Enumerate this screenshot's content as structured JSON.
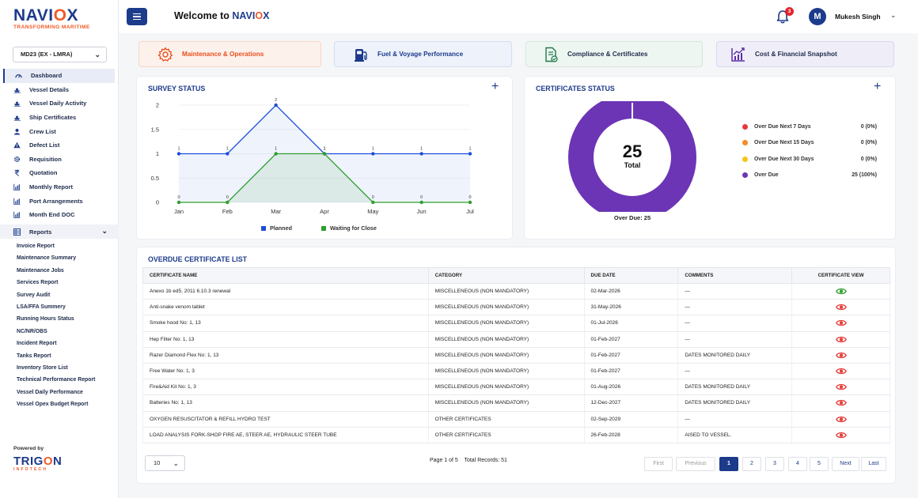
{
  "brand": {
    "name_a": "NAVI",
    "name_x": "O",
    "name_b": "X",
    "tagline": "TRANSFORMING MARITIME"
  },
  "vessel_select": {
    "value": "MD23 (EX - LMRA)"
  },
  "nav": {
    "items": [
      {
        "label": "Dashboard",
        "icon": "dashboard-icon"
      },
      {
        "label": "Vessel Details",
        "icon": "ship-icon"
      },
      {
        "label": "Vessel Daily Activity",
        "icon": "ship-icon"
      },
      {
        "label": "Ship Certificates",
        "icon": "ship-icon"
      },
      {
        "label": "Crew List",
        "icon": "crew-icon"
      },
      {
        "label": "Defect List",
        "icon": "warning-icon"
      },
      {
        "label": "Requisition",
        "icon": "gear-icon"
      },
      {
        "label": "Quotation",
        "icon": "rupee-icon"
      },
      {
        "label": "Monthly Report",
        "icon": "bar-chart-icon"
      },
      {
        "label": "Port Arrangements",
        "icon": "bar-chart-icon"
      },
      {
        "label": "Month End DOC",
        "icon": "bar-chart-icon"
      }
    ],
    "reports_label": "Reports",
    "reports": [
      "Invoice Report",
      "Maintenance Summary",
      "Maintenance Jobs",
      "Services Report",
      "Survey Audit",
      "LSA/FFA Summery",
      "Running Hours Status",
      "NC/NR/OBS",
      "Incident Report",
      "Tanks Report",
      "Inventory Store List",
      "Technical Performance Report",
      "Vessel Daily Performance",
      "Vessel Opex Budget Report"
    ]
  },
  "powered": {
    "label": "Powered by",
    "company_a": "TRIG",
    "company_o": "O",
    "company_b": "N",
    "company_sub": "INFOTECH"
  },
  "header": {
    "welcome": "Welcome to",
    "brand_a": "NAVI",
    "brand_x": "O",
    "brand_b": "X",
    "notifications": "3",
    "avatar_initial": "M",
    "user": "Mukesh Singh"
  },
  "quick_tabs": [
    {
      "label": "Maintenance & Operations",
      "icon": "gear-icon"
    },
    {
      "label": "Fuel & Voyage Performance",
      "icon": "fuel-icon"
    },
    {
      "label": "Compliance & Certificates",
      "icon": "certificate-icon"
    },
    {
      "label": "Cost & Financial Snapshot",
      "icon": "trend-chart-icon"
    }
  ],
  "survey": {
    "title": "SURVEY STATUS",
    "chart_data": {
      "type": "line",
      "categories": [
        "Jan",
        "Feb",
        "Mar",
        "Apr",
        "May",
        "Jun",
        "Jul"
      ],
      "ylim": [
        0,
        2
      ],
      "yticks": [
        "0",
        "0.5",
        "1",
        "1.5",
        "2"
      ],
      "series": [
        {
          "name": "Planned",
          "color": "#1d4ed8",
          "values": [
            1,
            1,
            2,
            1,
            1,
            1,
            1
          ]
        },
        {
          "name": "Waiting for Close",
          "color": "#2e9e2e",
          "values": [
            0,
            0,
            1,
            1,
            0,
            0,
            0
          ]
        }
      ]
    }
  },
  "certificates": {
    "title": "CERTIFICATES STATUS",
    "total": "25",
    "total_label": "Total",
    "overdue_summary": "Over Due: 25",
    "legend": [
      {
        "label": "Over Due Next 7 Days",
        "value": "0 (0%)",
        "color": "#e53935"
      },
      {
        "label": "Over Due Next 15 Days",
        "value": "0 (0%)",
        "color": "#f28c28"
      },
      {
        "label": "Over Due Next 30 Days",
        "value": "0 (0%)",
        "color": "#f5c518"
      },
      {
        "label": "Over Due",
        "value": "25 (100%)",
        "color": "#6c35b5"
      }
    ]
  },
  "overdue": {
    "title": "OVERDUE CERTIFICATE LIST",
    "columns": [
      "CERTIFICATE NAME",
      "CATEGORY",
      "DUE DATE",
      "COMMENTS",
      "CERTIFICATE VIEW"
    ],
    "rows": [
      {
        "name": "Anexo 1b ed5, 2011 6.10.3 renewal",
        "category": "MISCELLENEOUS (NON MANDATORY)",
        "due": "02-Mar-2026",
        "comments": "—",
        "eye": "#2e9e2e"
      },
      {
        "name": "Anti-snake venom tablet",
        "category": "MISCELLENEOUS (NON MANDATORY)",
        "due": "31-May-2026",
        "comments": "—",
        "eye": "#e53935"
      },
      {
        "name": "Smoke hood No: 1, 13",
        "category": "MISCELLENEOUS (NON MANDATORY)",
        "due": "01-Jul-2026",
        "comments": "—",
        "eye": "#e53935"
      },
      {
        "name": "Hep Filter No: 1, 13",
        "category": "MISCELLENEOUS (NON MANDATORY)",
        "due": "01-Feb-2027",
        "comments": "—",
        "eye": "#e53935"
      },
      {
        "name": "Razer Diamond Flex No: 1, 13",
        "category": "MISCELLENEOUS (NON MANDATORY)",
        "due": "01-Feb-2027",
        "comments": "DATES MONITORED DAILY",
        "eye": "#e53935"
      },
      {
        "name": "Free Water No: 1, 3",
        "category": "MISCELLENEOUS (NON MANDATORY)",
        "due": "01-Feb-2027",
        "comments": "—",
        "eye": "#e53935"
      },
      {
        "name": "Fire&Aid Kit No: 1, 3",
        "category": "MISCELLENEOUS (NON MANDATORY)",
        "due": "01-Aug-2026",
        "comments": "DATES MONITORED DAILY",
        "eye": "#e53935"
      },
      {
        "name": "Batteries No: 1, 13",
        "category": "MISCELLENEOUS (NON MANDATORY)",
        "due": "12-Dec-2027",
        "comments": "DATES MONITORED DAILY",
        "eye": "#e53935"
      },
      {
        "name": "OXYGEN RESUSCITATOR & REFILL HYDRO TEST",
        "category": "OTHER CERTIFICATES",
        "due": "02-Sep-2029",
        "comments": "—",
        "eye": "#e53935"
      },
      {
        "name": "LOAD ANALYSIS FORK-SHOP FIRE AE, STEER AE, HYDRAULIC STEER TUBE",
        "category": "OTHER CERTIFICATES",
        "due": "26-Feb-2028",
        "comments": "AISED TO VESSEL.",
        "eye": "#e53935"
      }
    ]
  },
  "pagination": {
    "page_size": "10",
    "page_info": "Page 1 of 5",
    "total": "Total Records: 51",
    "first": "First",
    "previous": "Previous",
    "next": "Next",
    "last": "Last",
    "pages": [
      "1",
      "2",
      "3",
      "4",
      "5"
    ]
  }
}
